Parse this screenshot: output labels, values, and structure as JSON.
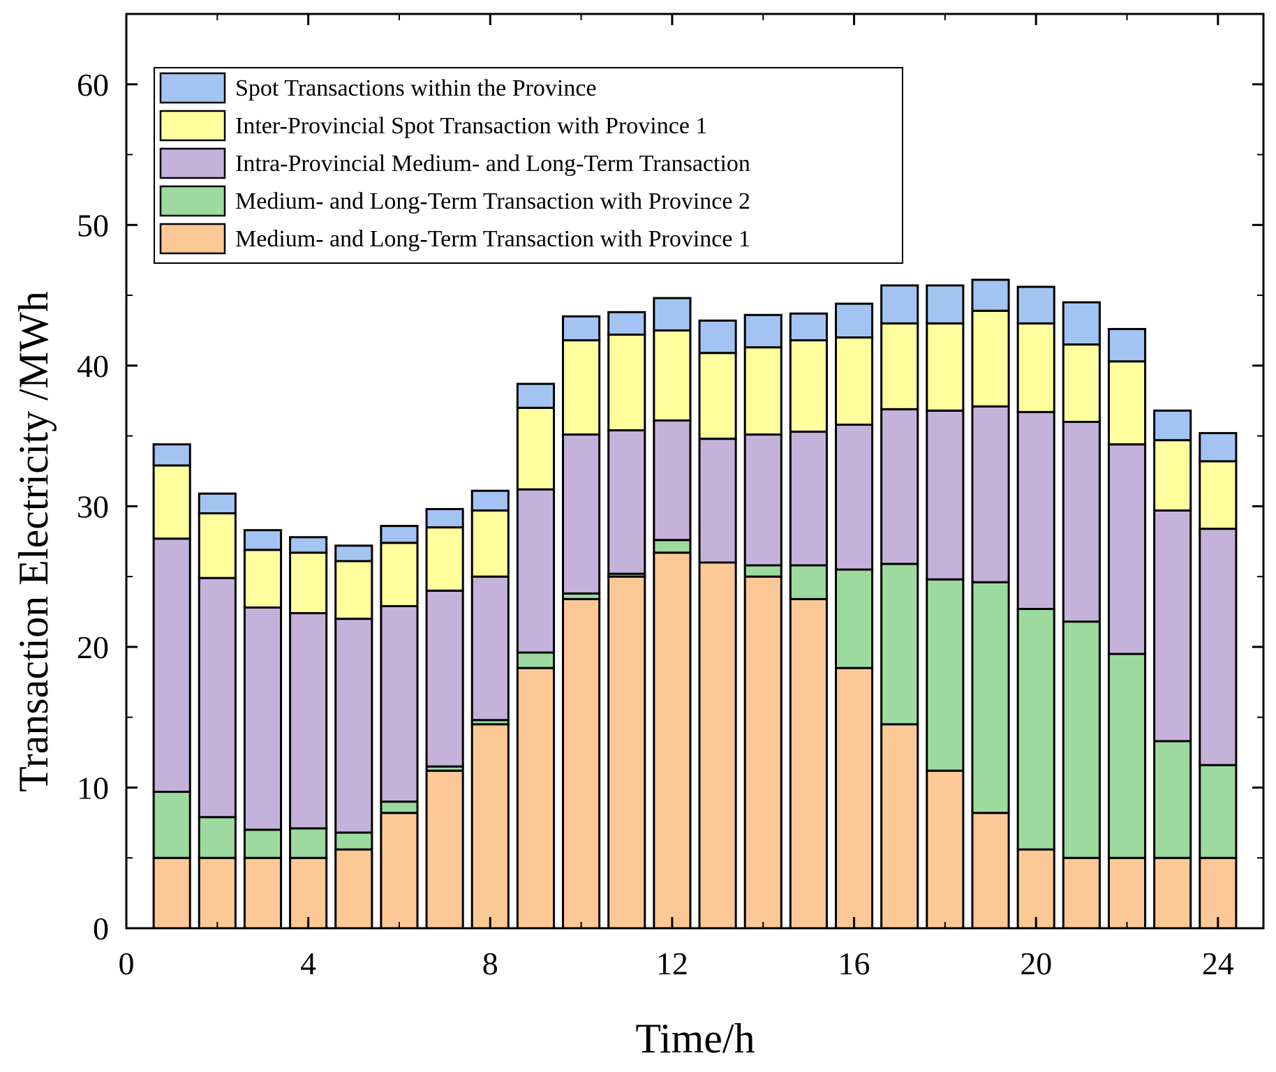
{
  "chart_data": {
    "type": "bar",
    "stacked": true,
    "xlabel": "Time/h",
    "ylabel": "Transaction Electricity /MWh",
    "xlim": [
      0,
      25
    ],
    "ylim": [
      0,
      65
    ],
    "x_ticks": [
      0,
      4,
      8,
      12,
      16,
      20,
      24
    ],
    "y_ticks": [
      0,
      10,
      20,
      30,
      40,
      50,
      60
    ],
    "x": [
      1,
      2,
      3,
      4,
      5,
      6,
      7,
      8,
      9,
      10,
      11,
      12,
      13,
      14,
      15,
      16,
      17,
      18,
      19,
      20,
      21,
      22,
      23,
      24
    ],
    "legend_position": "top-left",
    "series": [
      {
        "name": "Medium- and Long-Term Transaction with Province 1",
        "color": "#FBC896",
        "values": [
          5.0,
          5.0,
          5.0,
          5.0,
          5.6,
          8.2,
          11.2,
          14.5,
          18.5,
          23.4,
          25.0,
          26.7,
          26.0,
          25.0,
          23.4,
          18.5,
          14.5,
          11.2,
          8.2,
          5.6,
          5.0,
          5.0,
          5.0,
          5.0
        ]
      },
      {
        "name": "Medium- and Long-Term Transaction with Province 2",
        "color": "#9DDA9F",
        "values": [
          4.7,
          2.9,
          2.0,
          2.1,
          1.2,
          0.8,
          0.3,
          0.3,
          1.1,
          0.4,
          0.2,
          0.9,
          0.0,
          0.8,
          2.4,
          7.0,
          11.4,
          13.6,
          16.4,
          17.1,
          16.8,
          14.5,
          8.3,
          6.6
        ]
      },
      {
        "name": "Intra-Provincial Medium- and Long-Term Transaction",
        "color": "#C5B2DA",
        "values": [
          18.0,
          17.0,
          15.8,
          15.3,
          15.2,
          13.9,
          12.5,
          10.2,
          11.6,
          11.3,
          10.2,
          8.5,
          8.8,
          9.3,
          9.5,
          10.3,
          11.0,
          12.0,
          12.5,
          14.0,
          14.2,
          14.9,
          16.4,
          16.8
        ]
      },
      {
        "name": "Inter-Provincial Spot Transaction with Province 1",
        "color": "#FFFF9E",
        "values": [
          5.2,
          4.6,
          4.1,
          4.3,
          4.1,
          4.5,
          4.5,
          4.7,
          5.8,
          6.7,
          6.8,
          6.4,
          6.1,
          6.2,
          6.5,
          6.2,
          6.1,
          6.2,
          6.8,
          6.3,
          5.5,
          5.9,
          5.0,
          4.8
        ]
      },
      {
        "name": "Spot Transactions within the Province",
        "color": "#A3C4F3",
        "values": [
          1.5,
          1.4,
          1.4,
          1.1,
          1.1,
          1.2,
          1.3,
          1.4,
          1.7,
          1.7,
          1.6,
          2.3,
          2.3,
          2.3,
          1.9,
          2.4,
          2.7,
          2.7,
          2.2,
          2.6,
          3.0,
          2.3,
          2.1,
          2.0
        ]
      }
    ]
  }
}
